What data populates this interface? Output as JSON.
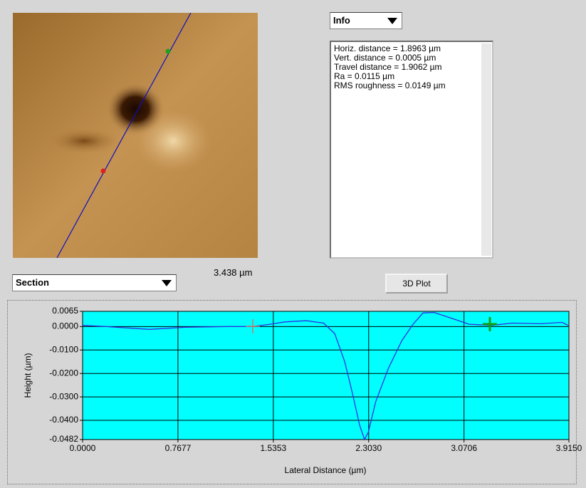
{
  "info_dropdown": {
    "label": "Info"
  },
  "info_text": {
    "lines": [
      "Horiz. distance = 1.8963 µm",
      "Vert. distance = 0.0005 µm",
      "Travel distance = 1.9062 µm",
      "Ra = 0.0115 µm",
      "RMS roughness = 0.0149 µm"
    ]
  },
  "scale_label": "3.438 µm",
  "section_dropdown": {
    "label": "Section"
  },
  "plot_button": {
    "label": "3D Plot"
  },
  "chart_data": {
    "type": "line",
    "x_label": "Lateral Distance (µm)",
    "y_label": "Height (µm)",
    "x": [
      0,
      0.19,
      0.54,
      0.82,
      1.17,
      1.37,
      1.51,
      1.63,
      1.8,
      1.94,
      2.03,
      2.11,
      2.17,
      2.23,
      2.27,
      2.3,
      2.36,
      2.46,
      2.57,
      2.66,
      2.74,
      2.83,
      3.0,
      3.11,
      3.29,
      3.46,
      3.69,
      3.86,
      3.91
    ],
    "values": [
      0.0005,
      0.0,
      -0.0012,
      -0.0003,
      0.0,
      0.0,
      0.001,
      0.002,
      0.0025,
      0.0015,
      -0.003,
      -0.015,
      -0.028,
      -0.042,
      -0.0482,
      -0.045,
      -0.032,
      -0.018,
      -0.006,
      0.001,
      0.0058,
      0.006,
      0.003,
      0.001,
      0.0005,
      0.0015,
      0.0012,
      0.0018,
      0.0005
    ],
    "color": "#3030e0",
    "background": "#00ffff",
    "grid": true,
    "xlim": [
      0,
      3.915
    ],
    "xticks": [
      {
        "value": 0,
        "label": "0.0000"
      },
      0.7677,
      1.5353,
      {
        "value": 2.303,
        "label": "2.3030"
      },
      3.0706,
      {
        "value": 3.915,
        "label": "3.9150"
      }
    ],
    "ylim": [
      -0.0482,
      0.0065
    ],
    "yticks": [
      0.0065,
      {
        "value": 0,
        "label": "0.0000"
      },
      {
        "value": -0.01,
        "label": "-0.0100"
      },
      {
        "value": -0.02,
        "label": "-0.0200"
      },
      {
        "value": -0.03,
        "label": "-0.0300"
      },
      {
        "value": -0.04,
        "label": "-0.0400"
      },
      -0.0482
    ]
  }
}
